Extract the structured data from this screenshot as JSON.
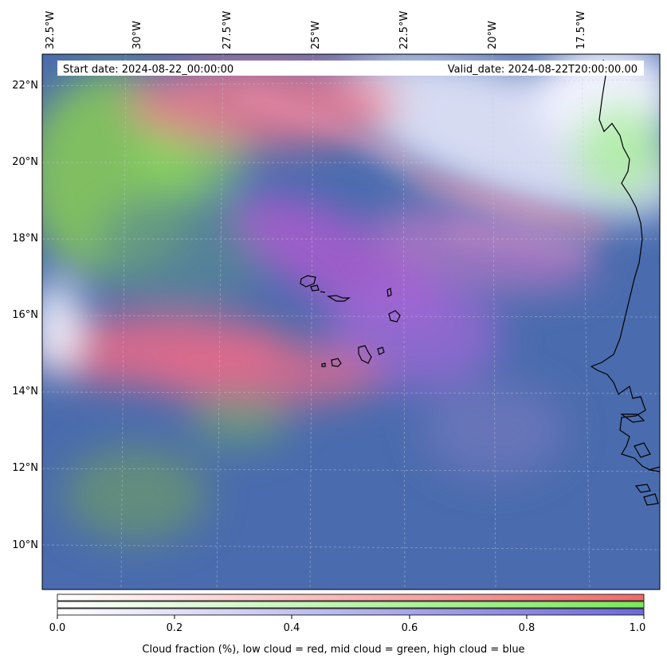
{
  "header": {
    "start_date": "Start date: 2024-08-22_00:00:00",
    "valid_date": "Valid_date: 2024-08-22T20:00:00.00"
  },
  "map": {
    "longitude_labels": [
      "32.5°W",
      "30°W",
      "27.5°W",
      "25°W",
      "22.5°W",
      "20°W",
      "17.5°W"
    ],
    "latitude_labels": [
      "22°N",
      "20°N",
      "18°N",
      "16°N",
      "14°N",
      "12°N",
      "10°N"
    ],
    "colors": {
      "low_cloud": "#ff6b6b",
      "mid_cloud": "#8ee86e",
      "high_cloud": "#7b7bdb",
      "ocean_base": "#4a6fb0"
    }
  },
  "colorbar": {
    "tick_labels": [
      "0.0",
      "0.2",
      "0.4",
      "0.6",
      "0.8",
      "1.0"
    ],
    "caption": "Cloud fraction (%), low cloud = red, mid cloud = green, high cloud = blue"
  }
}
